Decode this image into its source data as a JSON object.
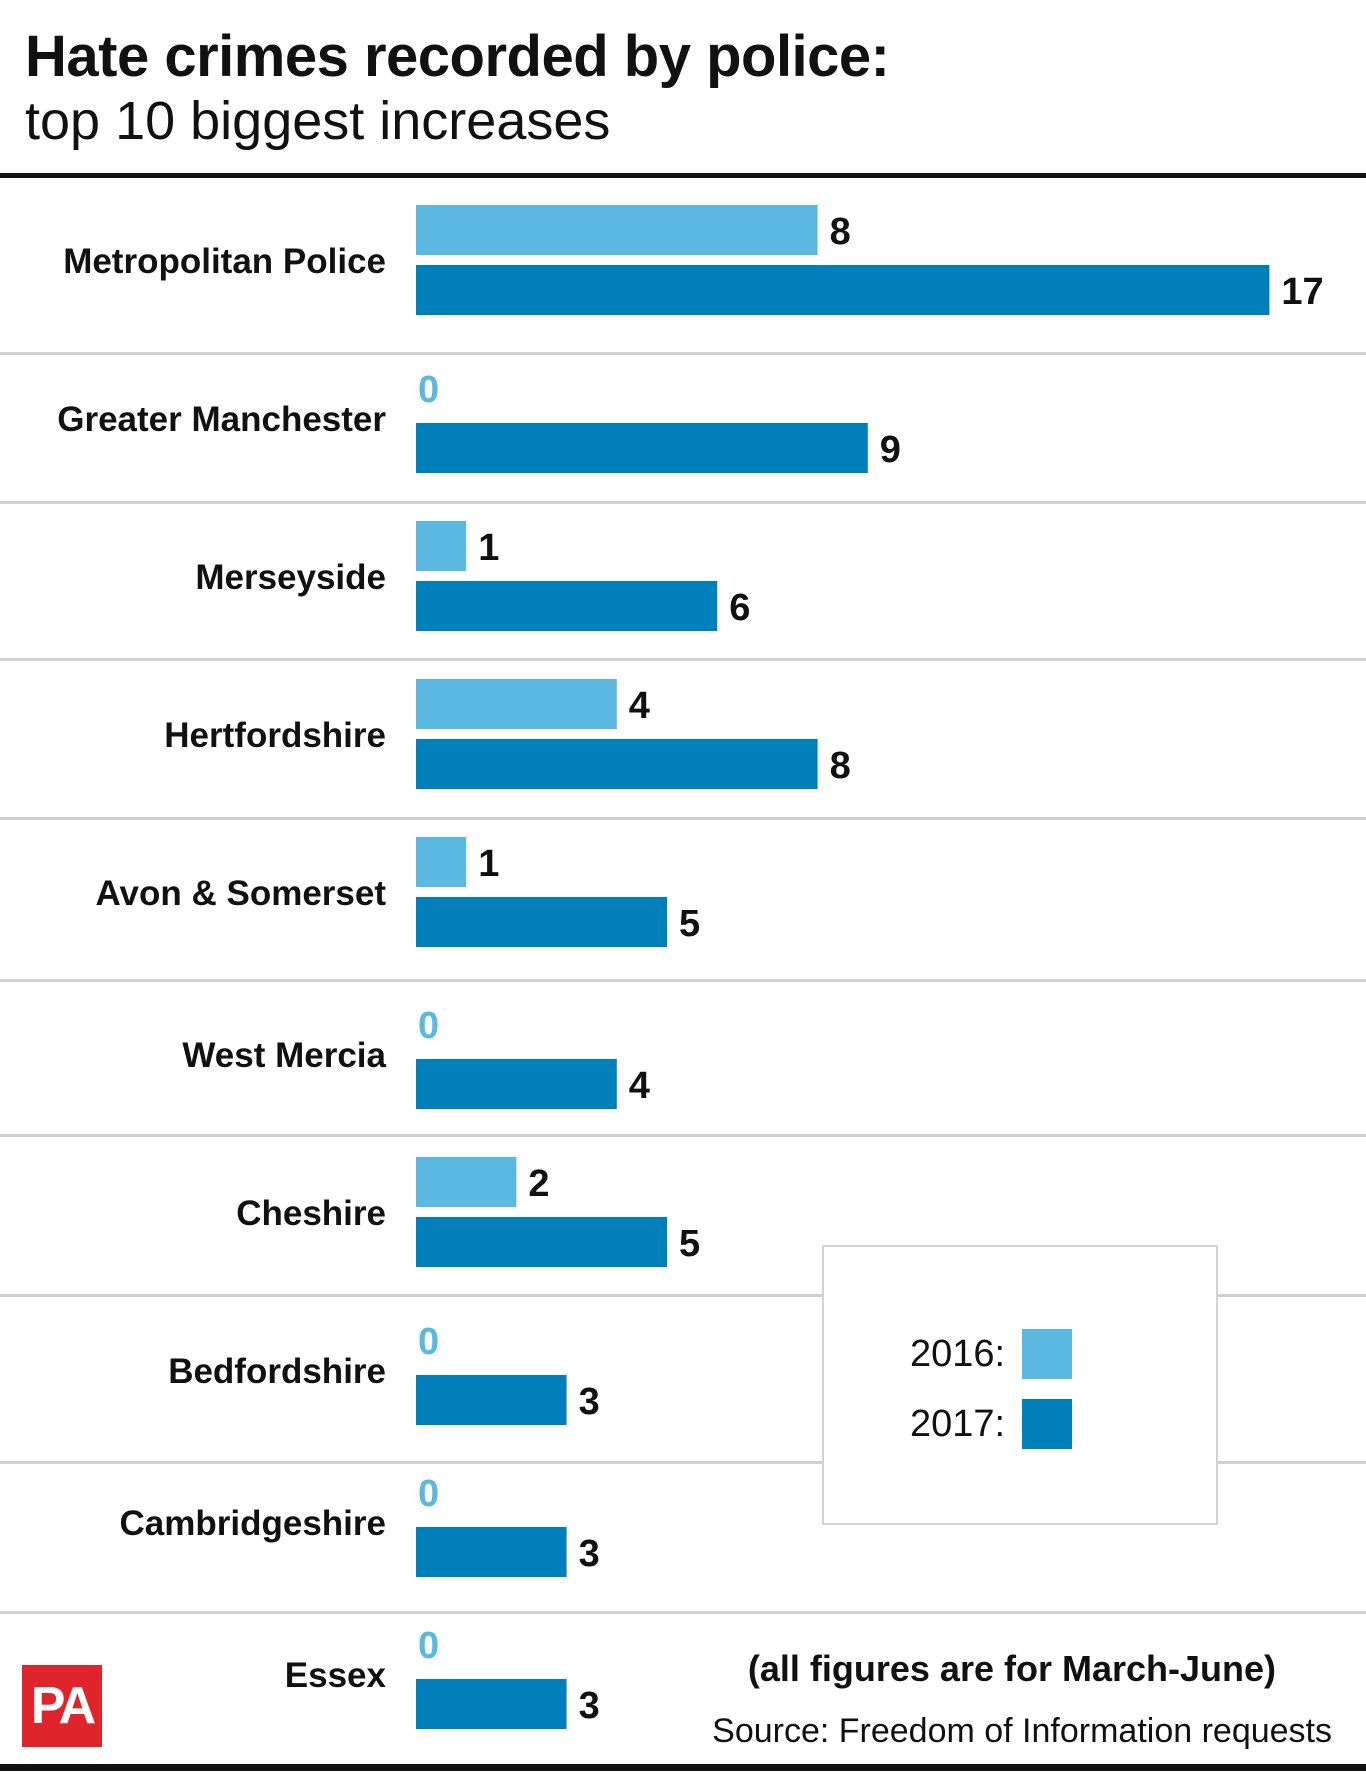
{
  "title": "Hate crimes recorded by police:",
  "subtitle": "top 10 biggest increases",
  "chart_data": {
    "type": "bar",
    "orientation": "horizontal",
    "categories": [
      "Metropolitan Police",
      "Greater Manchester",
      "Merseyside",
      "Hertfordshire",
      "Avon & Somerset",
      "West Mercia",
      "Cheshire",
      "Bedfordshire",
      "Cambridgeshire",
      "Essex"
    ],
    "series": [
      {
        "name": "2016",
        "values": [
          8,
          0,
          1,
          4,
          1,
          0,
          2,
          0,
          0,
          0
        ],
        "color": "#5bb8e0"
      },
      {
        "name": "2017",
        "values": [
          17,
          9,
          6,
          8,
          5,
          4,
          5,
          3,
          3,
          3
        ],
        "color": "#0080bb"
      }
    ],
    "xlim": [
      0,
      17
    ],
    "grid": false,
    "legend_position": "bottom-right"
  },
  "legend": {
    "label_2016": "2016:",
    "label_2017": "2017:"
  },
  "note": "(all figures are for March-June)",
  "source": "Source: Freedom of Information requests",
  "logo": "PA",
  "colors": {
    "series_2016": "#5bb8e0",
    "series_2017": "#0080bb",
    "divider": "#d0d0d0",
    "logo_red": "#e0242b"
  }
}
